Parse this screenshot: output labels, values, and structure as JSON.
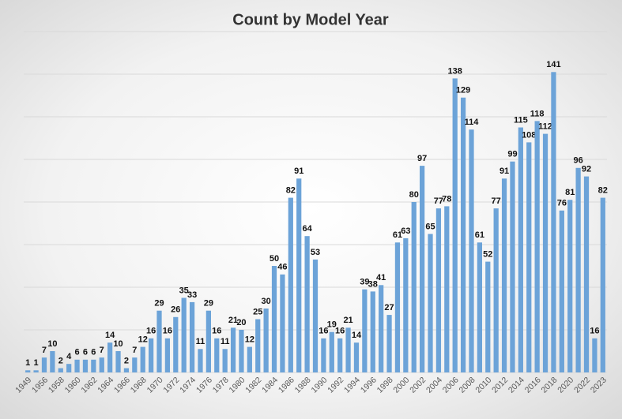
{
  "chart_data": {
    "type": "bar",
    "title": "Count by Model Year",
    "categories": [
      "1949",
      null,
      "1956",
      null,
      "1958",
      null,
      "1960",
      null,
      "1962",
      null,
      "1964",
      null,
      "1966",
      null,
      "1968",
      null,
      "1970",
      null,
      "1972",
      null,
      "1974",
      null,
      "1976",
      null,
      "1978",
      null,
      "1980",
      null,
      "1982",
      null,
      "1984",
      null,
      "1986",
      null,
      "1988",
      null,
      "1990",
      null,
      "1992",
      null,
      "1994",
      null,
      "1996",
      null,
      "1998",
      null,
      "2000",
      null,
      "2002",
      null,
      "2004",
      null,
      "2006",
      null,
      "2008",
      null,
      "2010",
      null,
      "2012",
      null,
      "2014",
      null,
      "2016",
      null,
      "2018",
      null,
      "2020",
      null,
      "2022",
      null,
      "2023"
    ],
    "values": [
      1,
      1,
      7,
      10,
      2,
      4,
      6,
      6,
      6,
      7,
      14,
      10,
      2,
      7,
      12,
      16,
      29,
      16,
      26,
      35,
      33,
      11,
      29,
      16,
      11,
      21,
      20,
      12,
      25,
      30,
      50,
      46,
      82,
      91,
      64,
      53,
      16,
      19,
      16,
      21,
      14,
      39,
      38,
      41,
      27,
      61,
      63,
      80,
      97,
      65,
      77,
      78,
      138,
      129,
      114,
      61,
      52,
      77,
      91,
      99,
      115,
      108,
      118,
      112,
      141,
      76,
      81,
      96,
      92,
      16,
      82
    ],
    "color": "#6ca3d8",
    "ylim": [
      0,
      160
    ],
    "yticks": [
      0,
      20,
      40,
      60,
      80,
      100,
      120,
      140,
      160
    ],
    "grid": true
  }
}
